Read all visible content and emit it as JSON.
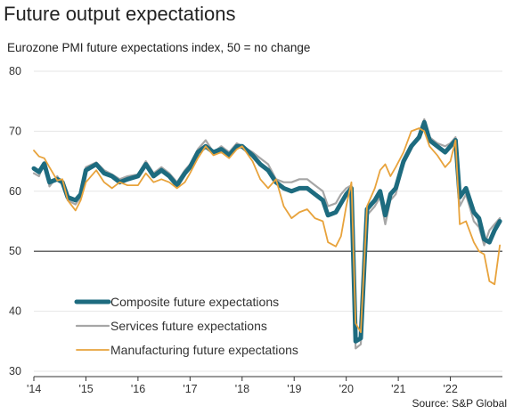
{
  "title": "Future output expectations",
  "subtitle": "Eurozone PMI future expectations index, 50 = no change",
  "source": "Source: S&P Global",
  "chart_data": {
    "type": "line",
    "title": "Future output expectations",
    "ylim": [
      30,
      80
    ],
    "yticks": [
      30,
      40,
      50,
      60,
      70,
      80
    ],
    "ytick_labels": [
      "30",
      "40",
      "50",
      "60",
      "70",
      "80"
    ],
    "xlim": [
      2014.0,
      2023.0
    ],
    "xticks": [
      2014,
      2015,
      2016,
      2017,
      2018,
      2019,
      2020,
      2021,
      2022
    ],
    "xtick_labels": [
      "'14",
      "'15",
      "'16",
      "'17",
      "'18",
      "'19",
      "'20",
      "'21",
      "'22"
    ],
    "grid": true,
    "reference_line": 50,
    "legend_position": "lower-left",
    "series": [
      {
        "name": "Composite future expectations",
        "color": "#1d6b7f",
        "points": [
          [
            2014.0,
            63.8
          ],
          [
            2014.1,
            63.2
          ],
          [
            2014.2,
            64.6
          ],
          [
            2014.3,
            61.5
          ],
          [
            2014.45,
            62.0
          ],
          [
            2014.55,
            61.5
          ],
          [
            2014.65,
            59.0
          ],
          [
            2014.8,
            58.5
          ],
          [
            2014.9,
            59.5
          ],
          [
            2015.0,
            63.5
          ],
          [
            2015.2,
            64.5
          ],
          [
            2015.35,
            63.0
          ],
          [
            2015.5,
            62.5
          ],
          [
            2015.65,
            61.5
          ],
          [
            2015.8,
            62.0
          ],
          [
            2016.0,
            62.5
          ],
          [
            2016.15,
            64.5
          ],
          [
            2016.3,
            62.5
          ],
          [
            2016.45,
            63.5
          ],
          [
            2016.6,
            62.5
          ],
          [
            2016.75,
            61.0
          ],
          [
            2016.9,
            63.0
          ],
          [
            2017.0,
            64.0
          ],
          [
            2017.15,
            66.5
          ],
          [
            2017.3,
            67.5
          ],
          [
            2017.45,
            66.5
          ],
          [
            2017.6,
            67.0
          ],
          [
            2017.75,
            66.0
          ],
          [
            2017.9,
            67.5
          ],
          [
            2018.0,
            67.5
          ],
          [
            2018.2,
            66.0
          ],
          [
            2018.35,
            64.5
          ],
          [
            2018.5,
            63.5
          ],
          [
            2018.65,
            61.5
          ],
          [
            2018.8,
            60.5
          ],
          [
            2018.95,
            60.0
          ],
          [
            2019.1,
            60.5
          ],
          [
            2019.25,
            60.5
          ],
          [
            2019.4,
            59.5
          ],
          [
            2019.55,
            58.5
          ],
          [
            2019.65,
            56.0
          ],
          [
            2019.8,
            56.5
          ],
          [
            2019.9,
            58.0
          ],
          [
            2020.0,
            59.5
          ],
          [
            2020.1,
            60.5
          ],
          [
            2020.18,
            35.0
          ],
          [
            2020.28,
            35.5
          ],
          [
            2020.4,
            57.0
          ],
          [
            2020.55,
            58.5
          ],
          [
            2020.65,
            60.0
          ],
          [
            2020.75,
            56.0
          ],
          [
            2020.85,
            59.5
          ],
          [
            2020.95,
            60.5
          ],
          [
            2021.1,
            65.0
          ],
          [
            2021.25,
            67.5
          ],
          [
            2021.4,
            69.0
          ],
          [
            2021.5,
            71.5
          ],
          [
            2021.6,
            68.5
          ],
          [
            2021.75,
            67.5
          ],
          [
            2021.9,
            66.5
          ],
          [
            2022.0,
            67.5
          ],
          [
            2022.1,
            68.5
          ],
          [
            2022.18,
            59.0
          ],
          [
            2022.3,
            60.5
          ],
          [
            2022.45,
            56.5
          ],
          [
            2022.55,
            55.5
          ],
          [
            2022.65,
            52.0
          ],
          [
            2022.75,
            51.5
          ],
          [
            2022.85,
            53.5
          ],
          [
            2022.95,
            55.0
          ]
        ]
      },
      {
        "name": "Services future expectations",
        "color": "#a6a6a6",
        "points": [
          [
            2014.0,
            63.0
          ],
          [
            2014.1,
            62.5
          ],
          [
            2014.2,
            64.8
          ],
          [
            2014.3,
            60.8
          ],
          [
            2014.45,
            62.5
          ],
          [
            2014.55,
            61.0
          ],
          [
            2014.65,
            58.5
          ],
          [
            2014.8,
            57.8
          ],
          [
            2014.9,
            59.0
          ],
          [
            2015.0,
            64.0
          ],
          [
            2015.2,
            64.8
          ],
          [
            2015.35,
            63.5
          ],
          [
            2015.5,
            62.8
          ],
          [
            2015.65,
            62.0
          ],
          [
            2015.8,
            62.5
          ],
          [
            2016.0,
            62.8
          ],
          [
            2016.15,
            65.0
          ],
          [
            2016.3,
            63.0
          ],
          [
            2016.45,
            64.0
          ],
          [
            2016.6,
            63.0
          ],
          [
            2016.75,
            61.5
          ],
          [
            2016.9,
            63.5
          ],
          [
            2017.0,
            64.5
          ],
          [
            2017.15,
            67.0
          ],
          [
            2017.3,
            68.5
          ],
          [
            2017.45,
            66.5
          ],
          [
            2017.6,
            67.5
          ],
          [
            2017.75,
            66.5
          ],
          [
            2017.9,
            68.0
          ],
          [
            2018.0,
            67.5
          ],
          [
            2018.2,
            66.5
          ],
          [
            2018.35,
            65.5
          ],
          [
            2018.5,
            64.5
          ],
          [
            2018.65,
            62.0
          ],
          [
            2018.8,
            61.5
          ],
          [
            2018.95,
            61.5
          ],
          [
            2019.1,
            62.0
          ],
          [
            2019.25,
            62.0
          ],
          [
            2019.4,
            61.0
          ],
          [
            2019.55,
            60.0
          ],
          [
            2019.65,
            57.5
          ],
          [
            2019.8,
            58.0
          ],
          [
            2019.9,
            59.5
          ],
          [
            2020.0,
            60.5
          ],
          [
            2020.1,
            61.0
          ],
          [
            2020.18,
            33.8
          ],
          [
            2020.28,
            34.5
          ],
          [
            2020.4,
            56.0
          ],
          [
            2020.55,
            57.5
          ],
          [
            2020.65,
            59.0
          ],
          [
            2020.75,
            54.5
          ],
          [
            2020.85,
            58.5
          ],
          [
            2020.95,
            59.5
          ],
          [
            2021.1,
            64.5
          ],
          [
            2021.25,
            67.0
          ],
          [
            2021.4,
            69.5
          ],
          [
            2021.5,
            72.0
          ],
          [
            2021.6,
            69.0
          ],
          [
            2021.75,
            68.0
          ],
          [
            2021.9,
            67.5
          ],
          [
            2022.0,
            68.0
          ],
          [
            2022.1,
            69.0
          ],
          [
            2022.18,
            57.5
          ],
          [
            2022.3,
            59.5
          ],
          [
            2022.45,
            55.0
          ],
          [
            2022.55,
            54.0
          ],
          [
            2022.65,
            51.0
          ],
          [
            2022.75,
            53.5
          ],
          [
            2022.85,
            54.5
          ],
          [
            2022.95,
            55.5
          ]
        ]
      },
      {
        "name": "Manufacturing future expectations",
        "color": "#e8a33c",
        "points": [
          [
            2014.0,
            66.8
          ],
          [
            2014.1,
            65.8
          ],
          [
            2014.2,
            65.5
          ],
          [
            2014.3,
            64.0
          ],
          [
            2014.45,
            61.8
          ],
          [
            2014.55,
            62.0
          ],
          [
            2014.65,
            58.5
          ],
          [
            2014.8,
            56.8
          ],
          [
            2014.9,
            58.5
          ],
          [
            2015.0,
            61.5
          ],
          [
            2015.2,
            63.5
          ],
          [
            2015.35,
            61.5
          ],
          [
            2015.5,
            60.5
          ],
          [
            2015.65,
            61.5
          ],
          [
            2015.8,
            61.0
          ],
          [
            2016.0,
            61.0
          ],
          [
            2016.15,
            63.0
          ],
          [
            2016.3,
            61.5
          ],
          [
            2016.45,
            62.0
          ],
          [
            2016.6,
            61.5
          ],
          [
            2016.75,
            60.5
          ],
          [
            2016.9,
            61.5
          ],
          [
            2017.0,
            63.0
          ],
          [
            2017.15,
            65.5
          ],
          [
            2017.3,
            67.5
          ],
          [
            2017.45,
            66.0
          ],
          [
            2017.6,
            66.5
          ],
          [
            2017.75,
            65.5
          ],
          [
            2017.9,
            67.0
          ],
          [
            2018.0,
            67.5
          ],
          [
            2018.2,
            65.0
          ],
          [
            2018.35,
            62.0
          ],
          [
            2018.5,
            60.5
          ],
          [
            2018.65,
            62.0
          ],
          [
            2018.8,
            57.5
          ],
          [
            2018.95,
            55.5
          ],
          [
            2019.1,
            56.5
          ],
          [
            2019.25,
            57.0
          ],
          [
            2019.4,
            55.5
          ],
          [
            2019.55,
            55.0
          ],
          [
            2019.65,
            51.5
          ],
          [
            2019.8,
            50.8
          ],
          [
            2019.9,
            52.5
          ],
          [
            2020.0,
            57.5
          ],
          [
            2020.1,
            61.5
          ],
          [
            2020.18,
            38.0
          ],
          [
            2020.28,
            36.5
          ],
          [
            2020.4,
            57.5
          ],
          [
            2020.55,
            60.5
          ],
          [
            2020.65,
            63.5
          ],
          [
            2020.75,
            64.5
          ],
          [
            2020.85,
            62.5
          ],
          [
            2020.95,
            64.0
          ],
          [
            2021.1,
            66.5
          ],
          [
            2021.25,
            70.0
          ],
          [
            2021.4,
            70.5
          ],
          [
            2021.5,
            70.0
          ],
          [
            2021.6,
            67.5
          ],
          [
            2021.75,
            66.0
          ],
          [
            2021.9,
            64.0
          ],
          [
            2022.0,
            65.0
          ],
          [
            2022.1,
            68.5
          ],
          [
            2022.18,
            54.5
          ],
          [
            2022.3,
            55.0
          ],
          [
            2022.45,
            51.5
          ],
          [
            2022.55,
            50.0
          ],
          [
            2022.65,
            49.5
          ],
          [
            2022.75,
            45.0
          ],
          [
            2022.85,
            44.5
          ],
          [
            2022.95,
            51.0
          ]
        ]
      }
    ]
  }
}
